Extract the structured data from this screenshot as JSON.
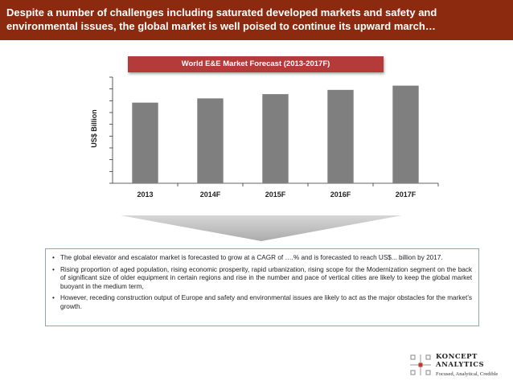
{
  "header": {
    "title": "Despite a number of challenges including saturated developed markets and safety and environmental issues, the global market is well poised to continue its upward march…"
  },
  "chart_data": {
    "type": "bar",
    "title": "World E&E Market Forecast (2013-2017F)",
    "categories": [
      "2013",
      "2014F",
      "2015F",
      "2016F",
      "2017F"
    ],
    "values": [
      76,
      80,
      84,
      88,
      92
    ],
    "xlabel": "",
    "ylabel": "US$ Billion",
    "ylim": [
      0,
      100
    ],
    "ytick_count": 9,
    "grid": false,
    "bar_color": "#7f7f7f"
  },
  "bullets": [
    "The global elevator and escalator market is forecasted to grow at a CAGR of ….% and is forecasted to reach US$... billion by 2017.",
    "Rising proportion of aged population, rising economic prosperity, rapid urbanization, rising scope for the Modernization segment on the back of significant size of older equipment in certain regions and rise in the number and pace of vertical cities are likely to keep the global market buoyant in the medium term,",
    "However, receding construction output of Europe and safety and environmental issues are likely to act as the major obstacles for the market’s growth."
  ],
  "logo": {
    "name_line1": "KONCEPT",
    "name_line2": "ANALYTICS",
    "tagline": "Focused, Analytical, Credible"
  },
  "colors": {
    "header_bg": "#8b2a0f",
    "title_bg": "#b53b3b",
    "bar": "#7f7f7f"
  }
}
